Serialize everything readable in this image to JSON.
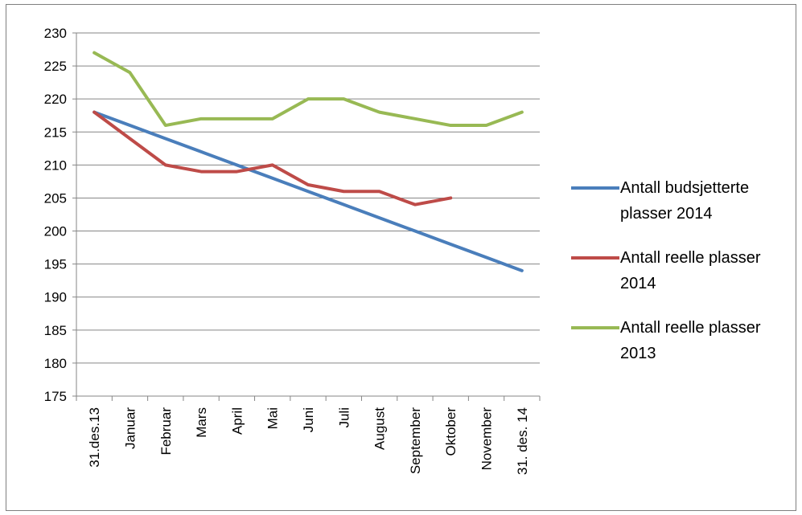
{
  "chart_data": {
    "type": "line",
    "categories": [
      "31.des.13",
      "Januar",
      "Februar",
      "Mars",
      "April",
      "Mai",
      "Juni",
      "Juli",
      "August",
      "September",
      "Oktober",
      "November",
      "31. des. 14"
    ],
    "y_ticks": [
      "175",
      "180",
      "185",
      "190",
      "195",
      "200",
      "205",
      "210",
      "215",
      "220",
      "225",
      "230"
    ],
    "ylim": [
      175,
      230
    ],
    "grid": "horizontal",
    "legend_position": "right",
    "series": [
      {
        "name": "Antall budsjetterte plasser  2014",
        "color": "#4a7ebb",
        "values": [
          218,
          216,
          214,
          212,
          210,
          208,
          206,
          204,
          202,
          200,
          198,
          196,
          194
        ]
      },
      {
        "name": "Antall reelle plasser 2014",
        "color": "#be4b48",
        "values": [
          218,
          214,
          210,
          209,
          209,
          210,
          207,
          206,
          206,
          204,
          205,
          null,
          null
        ]
      },
      {
        "name": "Antall reelle plasser 2013",
        "color": "#98b954",
        "values": [
          227,
          224,
          216,
          217,
          217,
          217,
          220,
          220,
          218,
          217,
          216,
          216,
          218
        ]
      }
    ]
  }
}
